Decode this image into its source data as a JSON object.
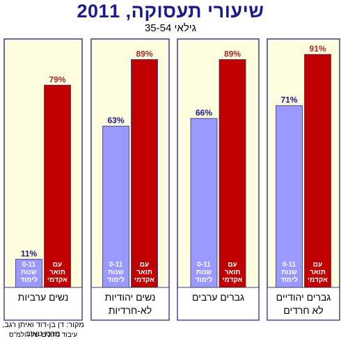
{
  "chart_data": {
    "type": "bar",
    "title": "שיעורי תעסוקה, 2011",
    "subtitle": "גילאי 35-54",
    "ylim": [
      0,
      100
    ],
    "series": [
      {
        "name": "0-11 שנות לימוד",
        "color": "#9999ff",
        "values": [
          11,
          63,
          66,
          71
        ]
      },
      {
        "name": "עם תואר אקדמי",
        "color": "#c00000",
        "values": [
          79,
          89,
          89,
          91
        ]
      }
    ],
    "bar_labels": {
      "low": [
        "0-11",
        "שנות",
        "לימוד"
      ],
      "high": [
        "עם",
        "תואר",
        "אקדמי"
      ]
    },
    "groups": [
      {
        "label_lines": [
          "נשים ערביות"
        ]
      },
      {
        "label_lines": [
          "נשים יהודיות",
          "לא-חרדיות"
        ]
      },
      {
        "label_lines": [
          "גברים ערבים"
        ]
      },
      {
        "label_lines": [
          "גברים יהודיים",
          "לא חרדים"
        ]
      }
    ],
    "value_label_colors": {
      "low": "#1a1a8c",
      "high": "#a52a2a"
    }
  },
  "source": {
    "line1": "מקור: דן בן-דוד ואיתן רגב, מרכז טאוב",
    "line2": "עיבוד נתונים של הלמ\"ס"
  },
  "colors": {
    "panel_bg": "#fffde0",
    "panel_border": "#3a3a8c"
  }
}
